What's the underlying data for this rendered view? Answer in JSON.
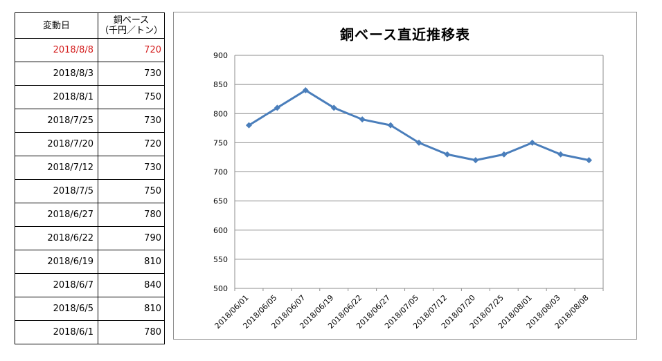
{
  "table": {
    "header_date": "変動日",
    "header_value_line1": "銅ベース",
    "header_value_line2": "（千円／トン）",
    "highlight_color": "#d41e1e",
    "rows": [
      {
        "date": "2018/8/8",
        "value": "720",
        "highlight": true
      },
      {
        "date": "2018/8/3",
        "value": "730"
      },
      {
        "date": "2018/8/1",
        "value": "750"
      },
      {
        "date": "2018/7/25",
        "value": "730"
      },
      {
        "date": "2018/7/20",
        "value": "720"
      },
      {
        "date": "2018/7/12",
        "value": "730"
      },
      {
        "date": "2018/7/5",
        "value": "750"
      },
      {
        "date": "2018/6/27",
        "value": "780"
      },
      {
        "date": "2018/6/22",
        "value": "790"
      },
      {
        "date": "2018/6/19",
        "value": "810"
      },
      {
        "date": "2018/6/7",
        "value": "840"
      },
      {
        "date": "2018/6/5",
        "value": "810"
      },
      {
        "date": "2018/6/1",
        "value": "780"
      }
    ]
  },
  "chart_data": {
    "type": "line",
    "title": "銅ベース直近推移表",
    "categories": [
      "2018/06/01",
      "2018/06/05",
      "2018/06/07",
      "2018/06/19",
      "2018/06/22",
      "2018/06/27",
      "2018/07/05",
      "2018/07/12",
      "2018/07/20",
      "2018/07/25",
      "2018/08/01",
      "2018/08/03",
      "2018/08/08"
    ],
    "series": [
      {
        "values": [
          780,
          810,
          840,
          810,
          790,
          780,
          750,
          730,
          720,
          730,
          750,
          730,
          720
        ],
        "color": "#4a7ebb"
      }
    ],
    "ylim": [
      500,
      900
    ],
    "yticks": [
      "900",
      "850",
      "800",
      "750",
      "700",
      "650",
      "600",
      "550",
      "500"
    ],
    "grid": true,
    "legend": "none",
    "marker": "diamond"
  }
}
